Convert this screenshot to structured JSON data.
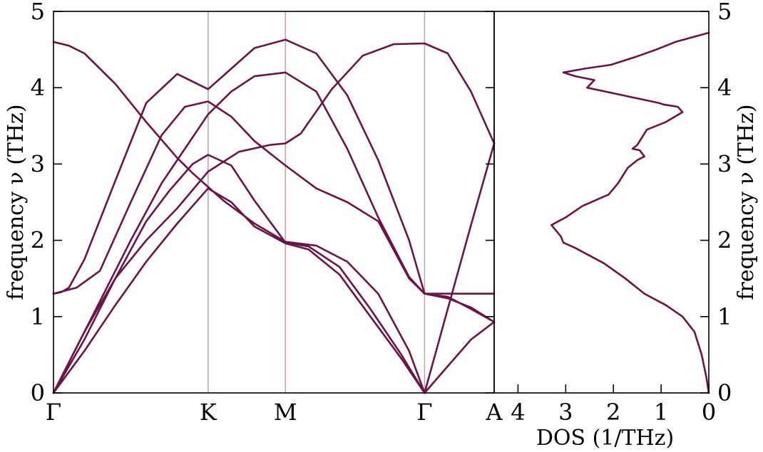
{
  "chart_data": [
    {
      "type": "line",
      "panel": "phonon-dispersion",
      "title": "",
      "xlabel": "",
      "ylabel": "frequency ν (THz)",
      "ylim": [
        0,
        5
      ],
      "y_ticks": [
        "0",
        "1",
        "2",
        "3",
        "4",
        "5"
      ],
      "x_ticks": [
        "Γ",
        "K",
        "M",
        "Γ",
        "A"
      ],
      "x_tick_positions": [
        0,
        1,
        1.5,
        2.4,
        2.85
      ],
      "xlim": [
        0,
        2.85
      ],
      "grid": false,
      "line_color": "#6b1447",
      "vline_color": "#c9a6a0",
      "series": [
        {
          "x": [
            0,
            0.12,
            0.3,
            0.5,
            0.7,
            0.85,
            1.0,
            1.15,
            1.3,
            1.5,
            1.7,
            1.9,
            2.1,
            2.3,
            2.4,
            2.55,
            2.7,
            2.85
          ],
          "values": [
            0,
            0.48,
            1.2,
            2.0,
            2.75,
            3.2,
            3.65,
            3.95,
            4.15,
            4.2,
            3.95,
            3.2,
            2.3,
            1.52,
            1.3,
            1.26,
            1.1,
            0.93
          ]
        },
        {
          "x": [
            0,
            0.2,
            0.4,
            0.6,
            0.75,
            0.9,
            1.0,
            1.15,
            1.3,
            1.5,
            1.65,
            1.85,
            2.05,
            2.25,
            2.4
          ],
          "values": [
            0,
            0.7,
            1.5,
            2.25,
            2.65,
            3.0,
            3.12,
            2.98,
            2.52,
            1.97,
            1.92,
            1.65,
            1.1,
            0.5,
            0
          ],
          "marker": "acoustic-transverse"
        },
        {
          "x": [
            0,
            0.2,
            0.4,
            0.6,
            0.8,
            1.0,
            1.15,
            1.3,
            1.5,
            1.65,
            1.85,
            2.05,
            2.25,
            2.4
          ],
          "values": [
            0,
            0.55,
            1.15,
            1.72,
            2.22,
            2.68,
            2.5,
            2.18,
            1.96,
            1.88,
            1.55,
            1.0,
            0.45,
            0
          ]
        },
        {
          "x": [
            0,
            0.15,
            0.3,
            0.5,
            0.7,
            0.85,
            1.0,
            1.15,
            1.3,
            1.5,
            1.7,
            1.9,
            2.1,
            2.3,
            2.4,
            2.55,
            2.7,
            2.85
          ],
          "values": [
            1.3,
            1.38,
            1.6,
            2.5,
            3.38,
            3.75,
            3.82,
            3.62,
            3.3,
            2.98,
            2.68,
            2.5,
            2.25,
            1.5,
            1.3,
            1.24,
            1.12,
            0.93
          ]
        },
        {
          "x": [
            0,
            0.1,
            0.2,
            0.4,
            0.6,
            0.8,
            0.9,
            1.0,
            1.1,
            1.3,
            1.5,
            1.7,
            1.9,
            2.1,
            2.3,
            2.4,
            2.55,
            2.7,
            2.85
          ],
          "values": [
            4.6,
            4.55,
            4.45,
            4.05,
            3.55,
            3.08,
            2.88,
            2.7,
            2.52,
            2.22,
            1.98,
            1.93,
            1.72,
            1.3,
            0.55,
            0,
            0.35,
            0.7,
            0.93
          ]
        },
        {
          "x": [
            0,
            0.05,
            0.1,
            0.2,
            0.4,
            0.6,
            0.8,
            1.0,
            1.15,
            1.3,
            1.5,
            1.7,
            1.9,
            2.1,
            2.3,
            2.4,
            2.55,
            2.7,
            2.85
          ],
          "values": [
            1.3,
            1.32,
            1.38,
            1.75,
            2.78,
            3.8,
            4.18,
            3.98,
            4.25,
            4.52,
            4.63,
            4.45,
            3.9,
            3.05,
            2.0,
            1.3,
            1.3,
            1.3,
            1.3
          ]
        },
        {
          "x": [
            0,
            0.2,
            0.4,
            0.6,
            0.8,
            1.0,
            1.2,
            1.4,
            1.5,
            1.6,
            1.8,
            2.0,
            2.2,
            2.4,
            2.55,
            2.7,
            2.85
          ],
          "values": [
            0,
            0.8,
            1.5,
            2.0,
            2.42,
            2.9,
            3.16,
            3.25,
            3.27,
            3.4,
            3.98,
            4.42,
            4.57,
            4.58,
            4.45,
            3.95,
            3.27
          ]
        },
        {
          "x": [
            2.4,
            2.55,
            2.7,
            2.85
          ],
          "values": [
            0,
            1.1,
            2.2,
            3.27
          ]
        }
      ]
    },
    {
      "type": "line",
      "panel": "density-of-states",
      "title": "",
      "xlabel": "DOS (1/THz)",
      "ylabel": "frequency ν (THz)",
      "xlim": [
        4.5,
        0
      ],
      "ylim": [
        0,
        5
      ],
      "x_ticks": [
        "4",
        "3",
        "2",
        "1",
        "0"
      ],
      "y_ticks": [
        "0",
        "1",
        "2",
        "3",
        "4",
        "5"
      ],
      "grid": false,
      "line_color": "#6b1447",
      "dos_values": [
        0,
        0.05,
        0.15,
        0.3,
        0.55,
        0.9,
        1.35,
        1.75,
        2.2,
        2.8,
        3.05,
        3.1,
        3.3,
        3.0,
        2.65,
        2.1,
        1.9,
        1.8,
        1.7,
        1.6,
        1.5,
        1.35,
        1.45,
        1.6,
        1.5,
        1.4,
        1.3,
        0.9,
        0.55,
        0.65,
        0.95,
        1.05,
        1.8,
        2.55,
        2.4,
        2.8,
        3.05,
        2.6,
        2.05,
        1.55,
        1.1,
        0.7,
        0
      ],
      "frequency": [
        0,
        0.2,
        0.5,
        0.8,
        1.0,
        1.15,
        1.3,
        1.5,
        1.7,
        1.9,
        1.97,
        2.05,
        2.2,
        2.3,
        2.45,
        2.6,
        2.75,
        2.85,
        2.95,
        3.0,
        3.05,
        3.1,
        3.18,
        3.2,
        3.25,
        3.35,
        3.45,
        3.55,
        3.68,
        3.75,
        3.78,
        3.8,
        3.9,
        4.0,
        4.1,
        4.15,
        4.2,
        4.25,
        4.3,
        4.4,
        4.5,
        4.6,
        4.72
      ]
    }
  ],
  "line_color": "#6b1447"
}
